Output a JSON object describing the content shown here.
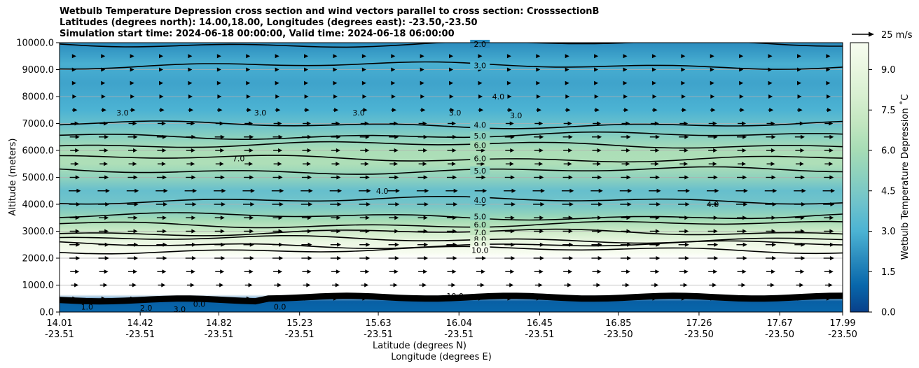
{
  "title_lines": [
    "Wetbulb Temperature Depression cross section and wind vectors parallel to cross section: CrosssectionB",
    "Latitudes (degrees north): 14.00,18.00, Longitudes (degrees east): -23.50,-23.50",
    "Simulation start time: 2024-06-18 00:00:00, Valid time: 2024-06-18 06:00:00"
  ],
  "chart_data": {
    "type": "contour",
    "ylabel": "Altitude (meters)",
    "xlabel_lines": [
      "Latitude (degrees N)",
      "Longitude (degrees E)"
    ],
    "colorbar_label": "Wetbulb Temperature Depression ˚C",
    "ylim": [
      0,
      10000
    ],
    "xlim": [
      14.01,
      17.99
    ],
    "y_ticks": [
      "0.0",
      "1000.0",
      "2000.0",
      "3000.0",
      "4000.0",
      "5000.0",
      "6000.0",
      "7000.0",
      "8000.0",
      "9000.0",
      "10000.0"
    ],
    "x_ticks": [
      {
        "lat": "14.01",
        "lon": "-23.51"
      },
      {
        "lat": "14.42",
        "lon": "-23.51"
      },
      {
        "lat": "14.82",
        "lon": "-23.51"
      },
      {
        "lat": "15.23",
        "lon": "-23.51"
      },
      {
        "lat": "15.63",
        "lon": "-23.51"
      },
      {
        "lat": "16.04",
        "lon": "-23.51"
      },
      {
        "lat": "16.45",
        "lon": "-23.51"
      },
      {
        "lat": "16.85",
        "lon": "-23.50"
      },
      {
        "lat": "17.26",
        "lon": "-23.50"
      },
      {
        "lat": "17.67",
        "lon": "-23.50"
      },
      {
        "lat": "17.99",
        "lon": "-23.50"
      }
    ],
    "colorbar_ticks": [
      "0.0",
      "1.5",
      "3.0",
      "4.5",
      "6.0",
      "7.5",
      "9.0"
    ],
    "colorbar_range": [
      0,
      10
    ],
    "grid": true,
    "quiver_key_label": "25 m/s",
    "layers": [
      {
        "alt": 0,
        "value": 1.0
      },
      {
        "alt": 400,
        "value": 0.8
      },
      {
        "alt": 650,
        "value": 11
      },
      {
        "alt": 2000,
        "value": 11
      },
      {
        "alt": 2200,
        "value": 10.2
      },
      {
        "alt": 2600,
        "value": 9.2
      },
      {
        "alt": 3000,
        "value": 7.5
      },
      {
        "alt": 3400,
        "value": 6.0
      },
      {
        "alt": 3700,
        "value": 5.0
      },
      {
        "alt": 4000,
        "value": 4.2
      },
      {
        "alt": 4500,
        "value": 3.8
      },
      {
        "alt": 5000,
        "value": 5.2
      },
      {
        "alt": 5500,
        "value": 6.3
      },
      {
        "alt": 6000,
        "value": 6.2
      },
      {
        "alt": 6500,
        "value": 5.0
      },
      {
        "alt": 7000,
        "value": 3.8
      },
      {
        "alt": 7500,
        "value": 3.0
      },
      {
        "alt": 8500,
        "value": 2.6
      },
      {
        "alt": 9200,
        "value": 2.9
      },
      {
        "alt": 10000,
        "value": 2.0
      }
    ],
    "contour_levels": [
      {
        "value": "2.0",
        "alt": 9950,
        "label_lat": 16.04
      },
      {
        "value": "3.0",
        "alt": 9150,
        "label_lat": 16.04
      },
      {
        "value": "4.0",
        "alt": 6950,
        "label_lat": 16.04
      },
      {
        "value": "5.0",
        "alt": 6550,
        "label_lat": 16.04
      },
      {
        "value": "6.0",
        "alt": 6200,
        "label_lat": 16.04
      },
      {
        "value": "6.0",
        "alt": 5700,
        "label_lat": 16.04
      },
      {
        "value": "5.0",
        "alt": 5250,
        "label_lat": 16.04
      },
      {
        "value": "4.0",
        "alt": 4150,
        "label_lat": 16.04
      },
      {
        "value": "5.0",
        "alt": 3550,
        "label_lat": 16.04
      },
      {
        "value": "6.0",
        "alt": 3250,
        "label_lat": 16.04
      },
      {
        "value": "7.0",
        "alt": 2950,
        "label_lat": 16.04
      },
      {
        "value": "8.0",
        "alt": 2700,
        "label_lat": 16.04
      },
      {
        "value": "9.0",
        "alt": 2500,
        "label_lat": 16.04
      },
      {
        "value": "10.0",
        "alt": 2300,
        "label_lat": 16.04
      }
    ],
    "extra_labels": [
      {
        "text": "3.0",
        "lat": 14.33,
        "alt": 7400
      },
      {
        "text": "3.0",
        "lat": 15.03,
        "alt": 7400
      },
      {
        "text": "3.0",
        "lat": 15.53,
        "alt": 7400
      },
      {
        "text": "3.0",
        "lat": 16.02,
        "alt": 7400
      },
      {
        "text": "3.0",
        "lat": 16.33,
        "alt": 7300
      },
      {
        "text": "4.0",
        "lat": 16.24,
        "alt": 8000
      },
      {
        "text": "7.0",
        "lat": 14.92,
        "alt": 5700
      },
      {
        "text": "4.0",
        "lat": 15.65,
        "alt": 4500
      },
      {
        "text": "4.0",
        "lat": 17.33,
        "alt": 4000
      },
      {
        "text": "10.0",
        "lat": 16.02,
        "alt": 600
      },
      {
        "text": "1.0",
        "lat": 14.15,
        "alt": 200
      },
      {
        "text": "2.0",
        "lat": 14.45,
        "alt": 150
      },
      {
        "text": "3.0",
        "lat": 14.62,
        "alt": 100
      },
      {
        "text": "0.0",
        "lat": 14.72,
        "alt": 300
      },
      {
        "text": "0.0",
        "lat": 15.13,
        "alt": 200
      }
    ],
    "wind_vectors": {
      "columns": 27,
      "altitudes": [
        500,
        1000,
        1500,
        2000,
        2500,
        3000,
        3500,
        4000,
        4500,
        5000,
        5500,
        6000,
        6500,
        7000,
        7500,
        8000,
        8500,
        9000,
        9500
      ],
      "speeds_ms": [
        3,
        8,
        10,
        12,
        12,
        11,
        11,
        13,
        14,
        11,
        9,
        10,
        11,
        9,
        5,
        3,
        2,
        2,
        2
      ],
      "direction": "along cross section"
    }
  },
  "colors": {
    "low": "#08408a",
    "mid": "#4cb3d3",
    "high_mid": "#a6dcb5",
    "high": "#f7fcf0",
    "contour": "#000000",
    "grid": "#b0b0b0"
  }
}
